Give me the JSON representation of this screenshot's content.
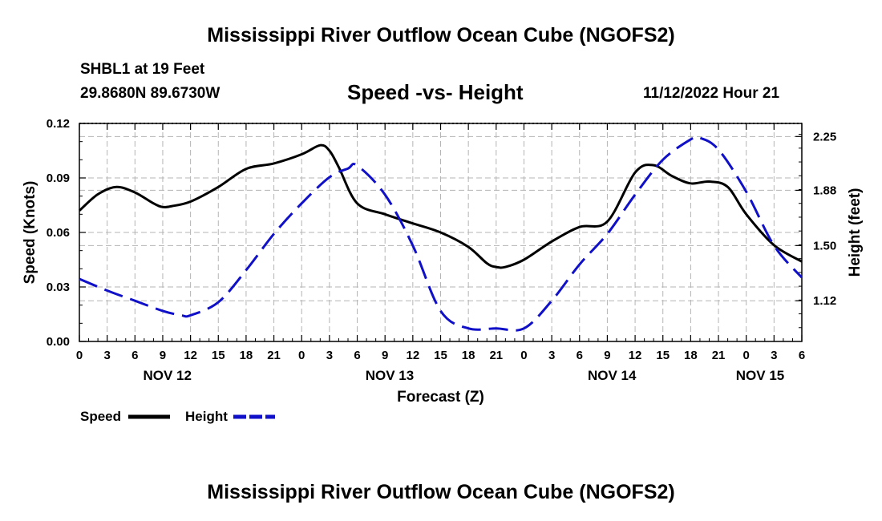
{
  "title": "Mississippi River Outflow Ocean Cube (NGOFS2)",
  "title_repeat": "Mississippi River Outflow Ocean Cube (NGOFS2)",
  "station": "SHBL1 at 19 Feet",
  "coordinates": "29.8680N  89.6730W",
  "subtitle": "Speed -vs- Height",
  "datetime": "11/12/2022 Hour 21",
  "chart_data": {
    "type": "line",
    "title": "Speed -vs- Height",
    "xlabel": "Forecast (Z)",
    "ylabel": "Speed (Knots)",
    "ylabel_right": "Height (feet)",
    "x_unit": "forecast hours from 2022-11-12 00Z",
    "xlim": [
      0,
      78
    ],
    "ylim": [
      0,
      0.12
    ],
    "ylim_right": [
      0.84,
      2.34
    ],
    "grid": true,
    "legend": "bottom-left",
    "x_tick_values": [
      0,
      3,
      6,
      9,
      12,
      15,
      18,
      21,
      24,
      27,
      30,
      33,
      36,
      39,
      42,
      45,
      48,
      51,
      54,
      57,
      60,
      63,
      66,
      69,
      72,
      75,
      78
    ],
    "x_tick_labels": [
      "0",
      "3",
      "6",
      "9",
      "12",
      "15",
      "18",
      "21",
      "0",
      "3",
      "6",
      "9",
      "12",
      "15",
      "18",
      "21",
      "0",
      "3",
      "6",
      "9",
      "12",
      "15",
      "18",
      "21",
      "0",
      "3",
      "6"
    ],
    "day_labels": [
      {
        "hour": 9.5,
        "label": "NOV 12"
      },
      {
        "hour": 33.5,
        "label": "NOV 13"
      },
      {
        "hour": 57.5,
        "label": "NOV 14"
      },
      {
        "hour": 73.5,
        "label": "NOV 15"
      }
    ],
    "y_ticks_left": [
      {
        "value": 0.0,
        "label": "0.00"
      },
      {
        "value": 0.03,
        "label": "0.03"
      },
      {
        "value": 0.06,
        "label": "0.06"
      },
      {
        "value": 0.09,
        "label": "0.09"
      },
      {
        "value": 0.12,
        "label": "0.12"
      }
    ],
    "y_ticks_right": [
      {
        "value": 1.12,
        "label": "1.12"
      },
      {
        "value": 1.5,
        "label": "1.50"
      },
      {
        "value": 1.88,
        "label": "1.88"
      },
      {
        "value": 2.25,
        "label": "2.25"
      }
    ],
    "series": [
      {
        "name": "Speed",
        "axis": "left",
        "color": "#000000",
        "dash": "solid",
        "x": [
          0,
          2,
          4,
          6,
          8,
          9,
          10,
          12,
          15,
          18,
          21,
          24,
          26,
          27,
          28,
          30,
          33,
          36,
          39,
          42,
          44,
          45,
          46,
          48,
          51,
          54,
          57,
          60,
          62,
          64,
          66,
          68,
          70,
          72,
          75,
          78
        ],
        "y": [
          0.072,
          0.081,
          0.085,
          0.082,
          0.076,
          0.074,
          0.0745,
          0.077,
          0.085,
          0.095,
          0.098,
          0.103,
          0.108,
          0.105,
          0.096,
          0.076,
          0.07,
          0.065,
          0.06,
          0.052,
          0.043,
          0.041,
          0.041,
          0.045,
          0.055,
          0.063,
          0.066,
          0.093,
          0.097,
          0.091,
          0.087,
          0.088,
          0.085,
          0.07,
          0.053,
          0.044
        ]
      },
      {
        "name": "Height",
        "axis": "right",
        "color": "#1010c8",
        "dash": "dashed",
        "x": [
          0,
          3,
          6,
          9,
          11,
          12,
          15,
          18,
          21,
          24,
          27,
          29,
          30,
          33,
          36,
          39,
          42,
          45,
          48,
          51,
          54,
          57,
          60,
          63,
          66,
          67,
          69,
          72,
          75,
          78
        ],
        "y": [
          1.27,
          1.19,
          1.12,
          1.05,
          1.02,
          1.02,
          1.11,
          1.33,
          1.58,
          1.79,
          1.97,
          2.03,
          2.05,
          1.85,
          1.5,
          1.05,
          0.93,
          0.93,
          0.93,
          1.12,
          1.37,
          1.58,
          1.85,
          2.09,
          2.23,
          2.24,
          2.16,
          1.87,
          1.5,
          1.28
        ]
      }
    ]
  }
}
